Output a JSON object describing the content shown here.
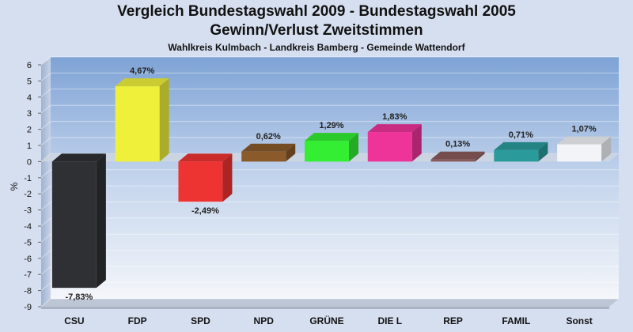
{
  "chart_data": {
    "type": "bar",
    "title": "Vergleich Bundestagswahl 2009 - Bundestagswahl 2005",
    "subtitle": "Gewinn/Verlust Zweitstimmen",
    "caption": "Wahlkreis Kulmbach - Landkreis Bamberg - Gemeinde Wattendorf",
    "ylabel": "%",
    "ylim": [
      -9,
      6
    ],
    "yticks": [
      6,
      5,
      4,
      3,
      2,
      1,
      0,
      -1,
      -2,
      -3,
      -4,
      -5,
      -6,
      -7,
      -8,
      -9
    ],
    "categories": [
      "CSU",
      "FDP",
      "SPD",
      "NPD",
      "GRÜNE",
      "DIE L",
      "REP",
      "FAMIL",
      "Sonst"
    ],
    "values": [
      -7.83,
      4.67,
      -2.49,
      0.62,
      1.29,
      1.83,
      0.13,
      0.71,
      1.07
    ],
    "value_labels": [
      "-7,83%",
      "4,67%",
      "-2,49%",
      "0,62%",
      "1,29%",
      "1,83%",
      "0,13%",
      "0,71%",
      "1,07%"
    ],
    "colors": [
      "#2f3034",
      "#eef03a",
      "#ee3333",
      "#8a5a2b",
      "#33ee33",
      "#ee3399",
      "#8a5a5a",
      "#2a9a9a",
      "#f2f4f8"
    ],
    "grid": true,
    "legend": "none"
  }
}
